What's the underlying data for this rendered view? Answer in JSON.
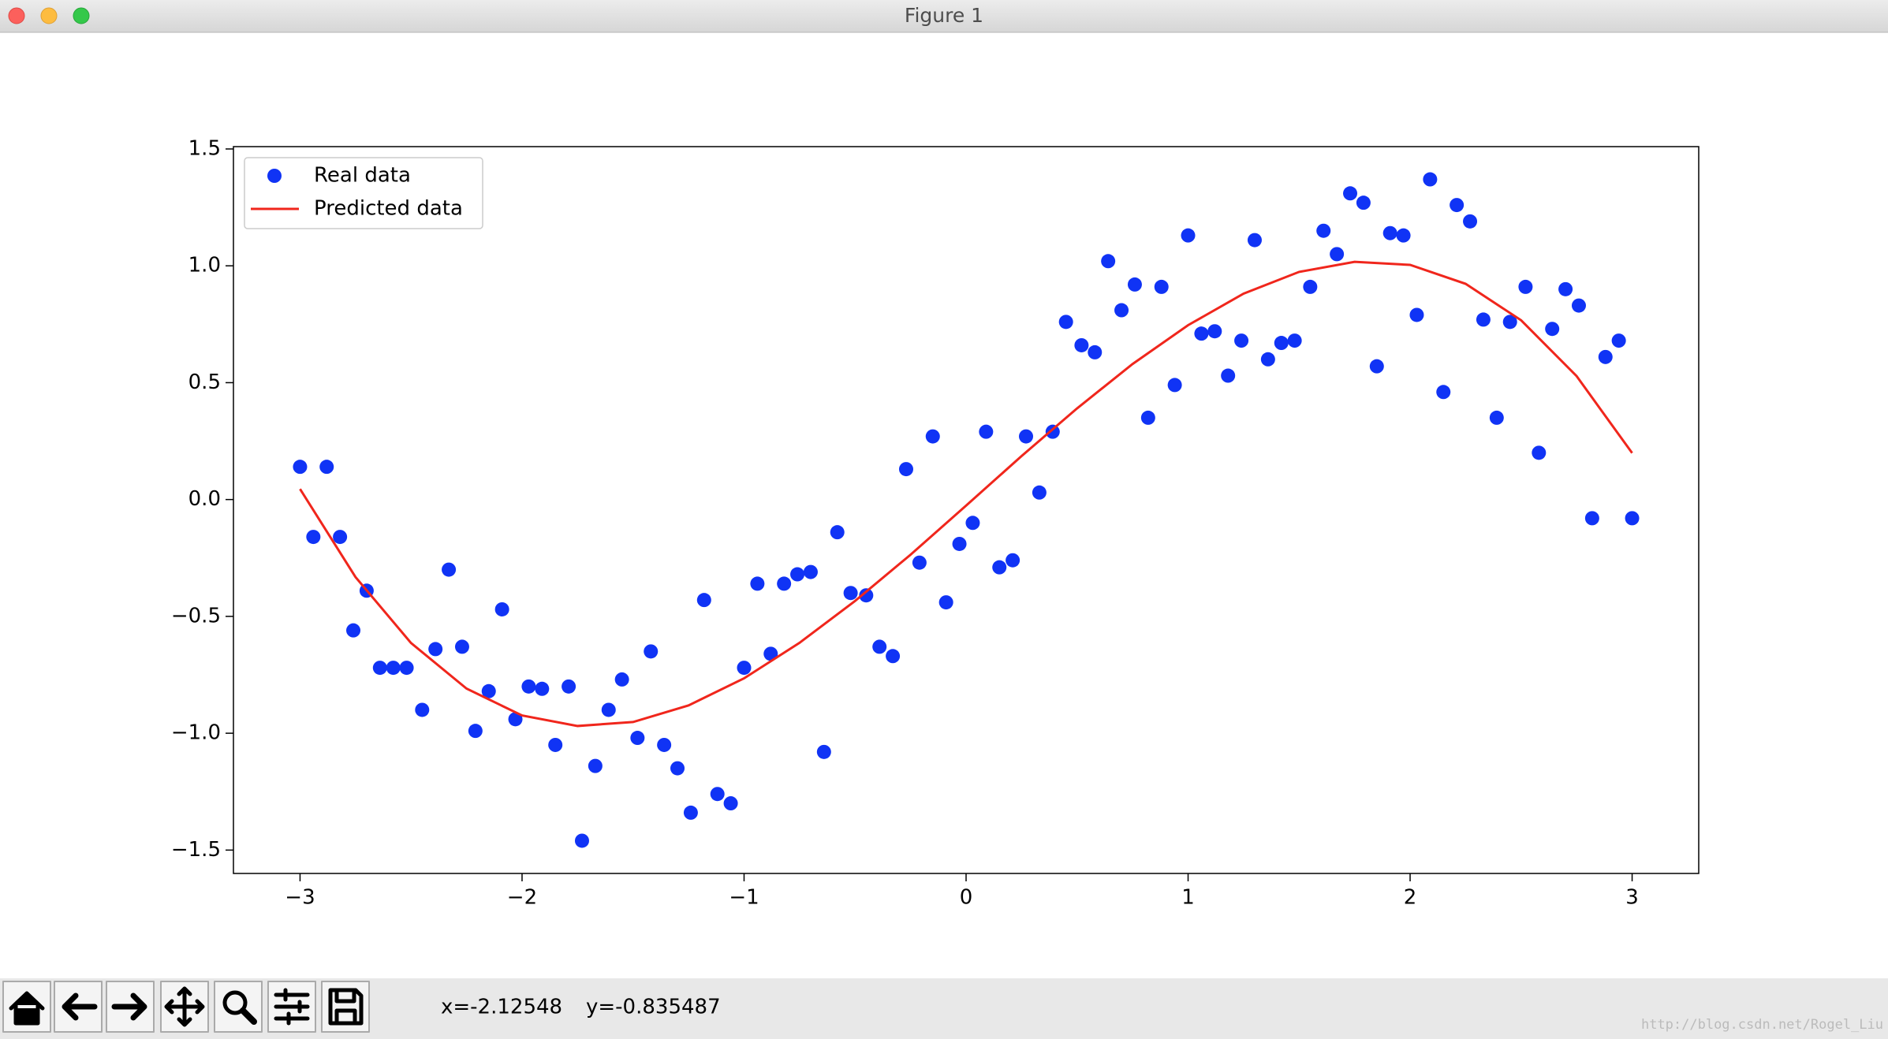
{
  "window_title": "Figure 1",
  "status": {
    "x": "x=-2.12548",
    "y": "y=-0.835487"
  },
  "watermark": "http://blog.csdn.net/Rogel_Liu",
  "chart_data": {
    "type": "scatter",
    "legend": "upper left",
    "xlim": [
      -3.3,
      3.3
    ],
    "ylim": [
      -1.6,
      1.51
    ],
    "xticks": [
      {
        "value": -3,
        "label": "−3"
      },
      {
        "value": -2,
        "label": "−2"
      },
      {
        "value": -1,
        "label": "−1"
      },
      0,
      1,
      2,
      3
    ],
    "yticks": [
      {
        "value": -1.5,
        "label": "−1.5"
      },
      {
        "value": -1,
        "label": "−1.0"
      },
      {
        "value": -0.5,
        "label": "−0.5"
      },
      {
        "value": 0,
        "label": "0.0"
      },
      0.5,
      {
        "value": 1,
        "label": "1.0"
      },
      1.5
    ],
    "series": [
      {
        "name": "Real data",
        "color": "#1033f5",
        "style": "markers",
        "x": [
          -3.0,
          -2.94,
          -2.88,
          -2.82,
          -2.76,
          -2.7,
          -2.64,
          -2.58,
          -2.52,
          -2.45,
          -2.39,
          -2.33,
          -2.27,
          -2.21,
          -2.15,
          -2.09,
          -2.03,
          -1.97,
          -1.91,
          -1.85,
          -1.79,
          -1.73,
          -1.67,
          -1.61,
          -1.55,
          -1.48,
          -1.42,
          -1.36,
          -1.3,
          -1.24,
          -1.18,
          -1.12,
          -1.06,
          -1.0,
          -0.94,
          -0.88,
          -0.82,
          -0.76,
          -0.7,
          -0.64,
          -0.58,
          -0.52,
          -0.45,
          -0.39,
          -0.33,
          -0.27,
          -0.21,
          -0.15,
          -0.09,
          -0.03,
          0.03,
          0.09,
          0.15,
          0.21,
          0.27,
          0.33,
          0.39,
          0.45,
          0.52,
          0.58,
          0.64,
          0.7,
          0.76,
          0.82,
          0.88,
          0.94,
          1.0,
          1.06,
          1.12,
          1.18,
          1.24,
          1.3,
          1.36,
          1.42,
          1.48,
          1.55,
          1.61,
          1.67,
          1.73,
          1.79,
          1.85,
          1.91,
          1.97,
          2.03,
          2.09,
          2.15,
          2.21,
          2.27,
          2.33,
          2.39,
          2.45,
          2.52,
          2.58,
          2.64,
          2.7,
          2.76,
          2.82,
          2.88,
          2.94,
          3.0
        ],
        "values": [
          0.14,
          -0.16,
          0.14,
          -0.16,
          -0.56,
          -0.39,
          -0.72,
          -0.72,
          -0.72,
          -0.9,
          -0.64,
          -0.3,
          -0.63,
          -0.99,
          -0.82,
          -0.47,
          -0.94,
          -0.8,
          -0.81,
          -1.05,
          -0.8,
          -1.46,
          -1.14,
          -0.9,
          -0.77,
          -1.02,
          -0.65,
          -1.05,
          -1.15,
          -1.34,
          -0.43,
          -1.26,
          -1.3,
          -0.72,
          -0.36,
          -0.66,
          -0.36,
          -0.32,
          -0.31,
          -1.08,
          -0.14,
          -0.4,
          -0.41,
          -0.63,
          -0.67,
          0.13,
          -0.27,
          0.27,
          -0.44,
          -0.19,
          -0.1,
          0.29,
          -0.29,
          -0.26,
          0.27,
          0.03,
          0.29,
          0.76,
          0.66,
          0.63,
          1.02,
          0.81,
          0.92,
          0.35,
          0.91,
          0.49,
          1.13,
          0.71,
          0.72,
          0.53,
          0.68,
          1.11,
          0.6,
          0.67,
          0.68,
          0.91,
          1.15,
          1.05,
          1.31,
          1.27,
          0.57,
          1.14,
          1.13,
          0.79,
          1.37,
          0.46,
          1.26,
          1.19,
          0.77,
          0.35,
          0.76,
          0.91,
          0.2,
          0.73,
          0.9,
          0.83,
          -0.08,
          0.61,
          0.68,
          -0.08
        ]
      },
      {
        "name": "Predicted data",
        "color": "#f0261c",
        "style": "line",
        "x": [
          -3,
          -2.75,
          -2.5,
          -2.25,
          -2,
          -1.75,
          -1.5,
          -1.25,
          -1,
          -0.75,
          -0.5,
          -0.25,
          0,
          0.25,
          0.5,
          0.75,
          1,
          1.25,
          1.5,
          1.75,
          2,
          2.25,
          2.5,
          2.75,
          3
        ],
        "values": [
          0.045,
          -0.332,
          -0.614,
          -0.809,
          -0.924,
          -0.969,
          -0.952,
          -0.881,
          -0.765,
          -0.613,
          -0.434,
          -0.236,
          -0.026,
          0.186,
          0.39,
          0.58,
          0.746,
          0.881,
          0.974,
          1.017,
          1.004,
          0.923,
          0.767,
          0.528,
          0.199
        ]
      }
    ]
  }
}
